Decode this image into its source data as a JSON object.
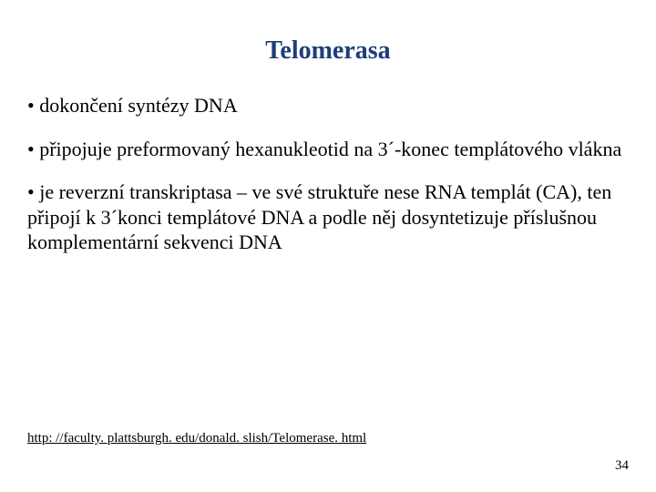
{
  "slide": {
    "title": "Telomerasa",
    "title_color": "#1f3d7a",
    "bullets": [
      "• dokončení syntézy DNA",
      "• připojuje preformovaný hexanukleotid na 3´-konec templátového vlákna",
      "• je reverzní transkriptasa – ve své struktuře nese RNA templát (CA), ten připojí k 3´konci templátové DNA a podle něj dosyntetizuje příslušnou komplementární sekvenci DNA"
    ],
    "link_text": "http: //faculty. plattsburgh. edu/donald. slish/Telomerase. html",
    "page_number": "34",
    "background_color": "#ffffff",
    "body_font_color": "#000000",
    "body_font_family": "Times New Roman"
  }
}
